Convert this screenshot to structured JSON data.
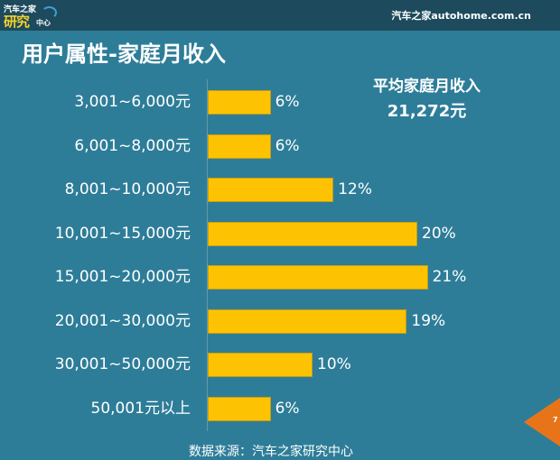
{
  "header": {
    "logo": {
      "line1": "汽车之家",
      "line2": "研究",
      "line3": "中心"
    },
    "brand": "汽车之家autohome.com.cn"
  },
  "title": "用户属性-家庭月收入",
  "average": {
    "label": "平均家庭月收入",
    "value": "21,272元"
  },
  "source": "数据来源：汽车之家研究中心",
  "page_number": "7",
  "colors": {
    "background": "#2e7d98",
    "topbar": "#1d4a5c",
    "bar": "#fdc302",
    "page_tab": "#e8741a"
  },
  "chart_data": {
    "type": "bar",
    "orientation": "horizontal",
    "title": "用户属性-家庭月收入",
    "xlabel": "",
    "ylabel": "",
    "categories": [
      "3,001~6,000元",
      "6,001~8,000元",
      "8,001~10,000元",
      "10,001~15,000元",
      "15,001~20,000元",
      "20,001~30,000元",
      "30,001~50,000元",
      "50,001元以上"
    ],
    "values": [
      6,
      6,
      12,
      20,
      21,
      19,
      10,
      6
    ],
    "value_labels": [
      "6%",
      "6%",
      "12%",
      "20%",
      "21%",
      "19%",
      "10%",
      "6%"
    ],
    "unit": "%",
    "grid": false,
    "legend": null,
    "annotations": [
      "平均家庭月收入 21,272元"
    ]
  }
}
